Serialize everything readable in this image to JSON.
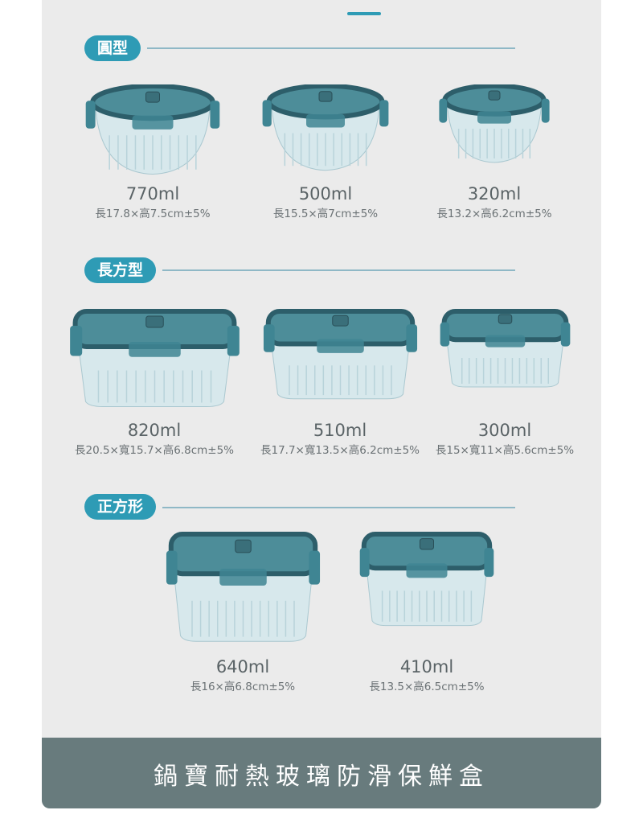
{
  "colors": {
    "accent": "#2e9bb5",
    "lid": "#2d5e6a",
    "footer": "#687b7d",
    "panel": "#ebebeb"
  },
  "sections": [
    {
      "label": "圓型",
      "shape": "round",
      "products": [
        {
          "capacity": "770ml",
          "dims": "長17.8×高7.5cm±5%"
        },
        {
          "capacity": "500ml",
          "dims": "長15.5×高7cm±5%"
        },
        {
          "capacity": "320ml",
          "dims": "長13.2×高6.2cm±5%"
        }
      ]
    },
    {
      "label": "長方型",
      "shape": "rect",
      "products": [
        {
          "capacity": "820ml",
          "dims": "長20.5×寬15.7×高6.8cm±5%"
        },
        {
          "capacity": "510ml",
          "dims": "長17.7×寬13.5×高6.2cm±5%"
        },
        {
          "capacity": "300ml",
          "dims": "長15×寬11×高5.6cm±5%"
        }
      ]
    },
    {
      "label": "正方形",
      "shape": "square",
      "products": [
        {
          "capacity": "640ml",
          "dims": "長16×高6.8cm±5%"
        },
        {
          "capacity": "410ml",
          "dims": "長13.5×高6.5cm±5%"
        }
      ]
    }
  ],
  "footer": {
    "title": "鍋寶耐熱玻璃防滑保鮮盒"
  }
}
